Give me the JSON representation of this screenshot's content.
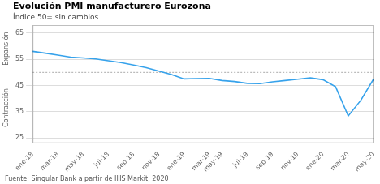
{
  "chart_data": {
    "type": "line",
    "title": "Evolución PMI manufacturero Eurozona",
    "subtitle": "Índice 50= sin cambios",
    "source": "Fuente: Singular Bank a partir de IHS Markit, 2020",
    "annotations": [
      "Expansión",
      "Contracción"
    ],
    "reference_line": 50,
    "categories": [
      "ene-18",
      null,
      "mar-18",
      null,
      "may-18",
      null,
      "jul-18",
      null,
      "sep-18",
      null,
      "nov-18",
      null,
      "ene-19",
      null,
      "mar-19",
      "may-19",
      null,
      "jul-19",
      null,
      "sep-19",
      null,
      "nov-19",
      null,
      "ene-20",
      null,
      "mar-20",
      null,
      "may-20"
    ],
    "values": [
      58.0,
      57.3,
      56.6,
      55.8,
      55.5,
      55.1,
      54.4,
      53.7,
      52.8,
      51.8,
      50.5,
      49.2,
      47.5,
      47.6,
      47.7,
      46.9,
      46.5,
      45.8,
      45.7,
      46.4,
      46.9,
      47.4,
      47.9,
      47.2,
      44.5,
      33.4,
      39.4,
      47.4
    ],
    "ylim": [
      23,
      68
    ],
    "yticks": [
      25,
      35,
      45,
      55,
      65
    ],
    "grid": true
  }
}
